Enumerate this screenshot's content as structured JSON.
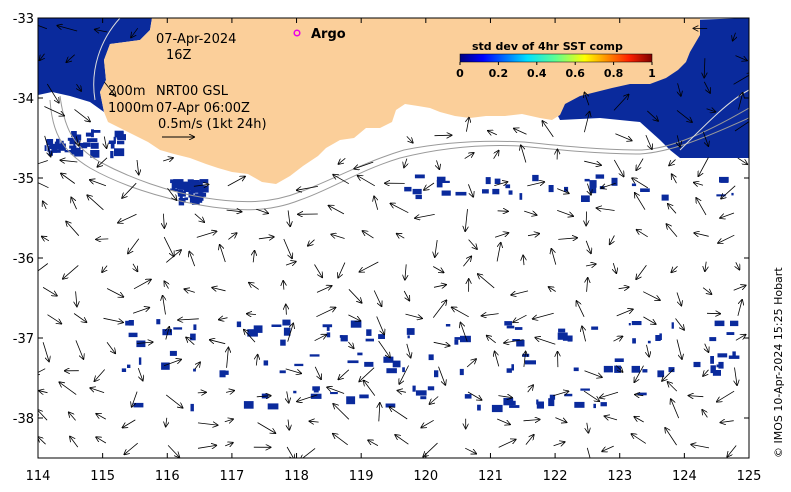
{
  "map": {
    "date": "07-Apr-2024",
    "hour": "16Z",
    "contour_shallow": "200m",
    "contour_deep": "1000m",
    "product": "NRT00 GSL",
    "valid_time": "07-Apr 06:00Z",
    "scale_label": "0.5m/s (1kt 24h)",
    "argo_label": "Argo",
    "credit": "© IMOS 10-Apr-2024 15:25 Hobart",
    "x_ticks": [
      "114",
      "115",
      "116",
      "117",
      "118",
      "119",
      "120",
      "121",
      "122",
      "123",
      "124",
      "125"
    ],
    "y_ticks": [
      "-33",
      "-34",
      "-35",
      "-36",
      "-37",
      "-38"
    ],
    "lon_range": [
      114,
      125
    ],
    "lat_range": [
      -38.5,
      -33
    ],
    "colors": {
      "land": "#fbcf9a",
      "sst_low": "#0a2a9c",
      "argo": "#e800e8"
    }
  },
  "colorbar": {
    "title": "std dev of 4hr SST comp",
    "ticks": [
      "0",
      "0.2",
      "0.4",
      "0.6",
      "0.8",
      "1"
    ],
    "range": [
      0,
      1
    ]
  }
}
